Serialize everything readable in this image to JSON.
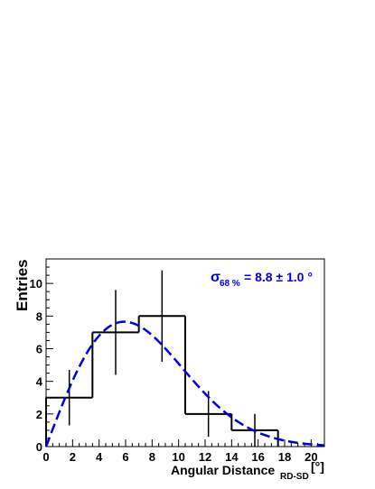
{
  "chart_data": {
    "type": "histogram",
    "xlabel": "Angular Distance",
    "xlabel_subscript": "RD-SD",
    "xlabel_unit": "[°]",
    "ylabel": "Entries",
    "xlim": [
      0,
      21
    ],
    "ylim": [
      0,
      11.5
    ],
    "grid": false,
    "x_ticks": [
      0,
      2,
      4,
      6,
      8,
      10,
      12,
      14,
      16,
      18,
      20
    ],
    "y_ticks": [
      0,
      2,
      4,
      6,
      8,
      10
    ],
    "bins": [
      {
        "low": 0.0,
        "high": 3.5,
        "value": 3,
        "err_center": 1.75,
        "err_lo": 1.3,
        "err_hi": 4.7
      },
      {
        "low": 3.5,
        "high": 7.0,
        "value": 7,
        "err_center": 5.25,
        "err_lo": 4.4,
        "err_hi": 9.6
      },
      {
        "low": 7.0,
        "high": 10.5,
        "value": 8,
        "err_center": 8.75,
        "err_lo": 5.2,
        "err_hi": 10.8
      },
      {
        "low": 10.5,
        "high": 14.0,
        "value": 2,
        "err_center": 12.25,
        "err_lo": 0.6,
        "err_hi": 3.4
      },
      {
        "low": 14.0,
        "high": 17.5,
        "value": 1,
        "err_center": 15.75,
        "err_lo": 0.0,
        "err_hi": 2.0
      }
    ],
    "fit": {
      "shape": "rayleigh",
      "sigma": 5.9,
      "amplitude": 7.65,
      "color": "#0000dd",
      "style": "dashed"
    },
    "annotation": {
      "symbol": "σ",
      "subscript": "68 %",
      "text": "= 8.8 ± 1.0 °",
      "color": "#0000dd",
      "placement": "top-right"
    }
  }
}
